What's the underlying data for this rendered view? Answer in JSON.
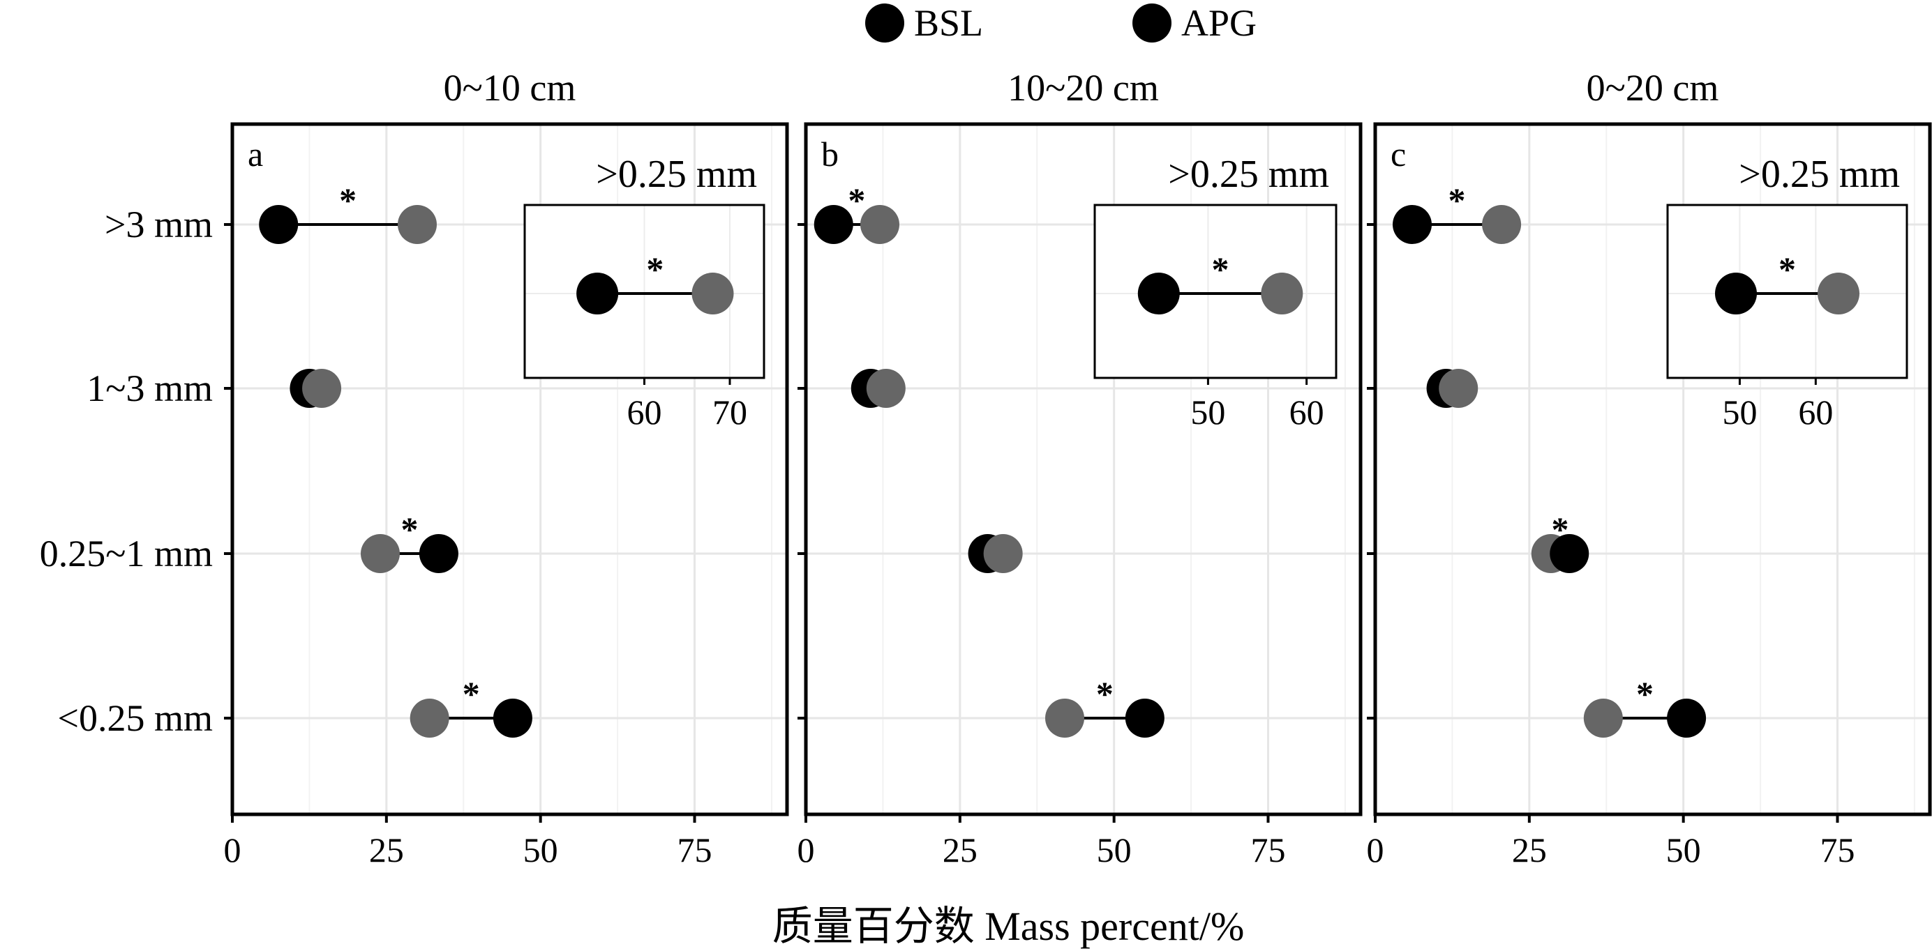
{
  "legend": [
    {
      "label": "BSL",
      "color": "#000000"
    },
    {
      "label": "APG",
      "color": "#666666"
    }
  ],
  "x_axis_title": "质量百分数 Mass percent/%",
  "chart_data": {
    "type": "dumbbell",
    "xlim": [
      0,
      90
    ],
    "xticks": [
      0,
      25,
      50,
      75
    ],
    "grid": true,
    "legend_position": "top",
    "categories": [
      ">3 mm",
      "1~3 mm",
      "0.25~1 mm",
      "<0.25 mm"
    ],
    "panels": [
      {
        "letter": "a",
        "title": "0~10 cm",
        "BSL": [
          7.5,
          12.5,
          33.5,
          45.5
        ],
        "APG": [
          30,
          14.5,
          24,
          32
        ],
        "significant": [
          true,
          false,
          true,
          true
        ],
        "inset": {
          "title": ">0.25 mm",
          "xlim": [
            46,
            74
          ],
          "xticks": [
            60,
            70
          ],
          "BSL": 54.5,
          "APG": 68,
          "significant": true
        }
      },
      {
        "letter": "b",
        "title": "10~20 cm",
        "BSL": [
          4.5,
          10.5,
          29.5,
          55
        ],
        "APG": [
          12,
          13,
          32,
          42
        ],
        "significant": [
          true,
          false,
          false,
          true
        ],
        "inset": {
          "title": ">0.25 mm",
          "xlim": [
            38.5,
            63
          ],
          "xticks": [
            50,
            60
          ],
          "BSL": 45,
          "APG": 57.5,
          "significant": true
        }
      },
      {
        "letter": "c",
        "title": "0~20 cm",
        "BSL": [
          6,
          11.5,
          31.5,
          50.5
        ],
        "APG": [
          20.5,
          13.5,
          28.5,
          37
        ],
        "significant": [
          true,
          false,
          true,
          true
        ],
        "inset": {
          "title": ">0.25 mm",
          "xlim": [
            40.5,
            72
          ],
          "xticks": [
            50,
            60
          ],
          "BSL": 49.5,
          "APG": 63,
          "significant": true
        }
      }
    ]
  }
}
